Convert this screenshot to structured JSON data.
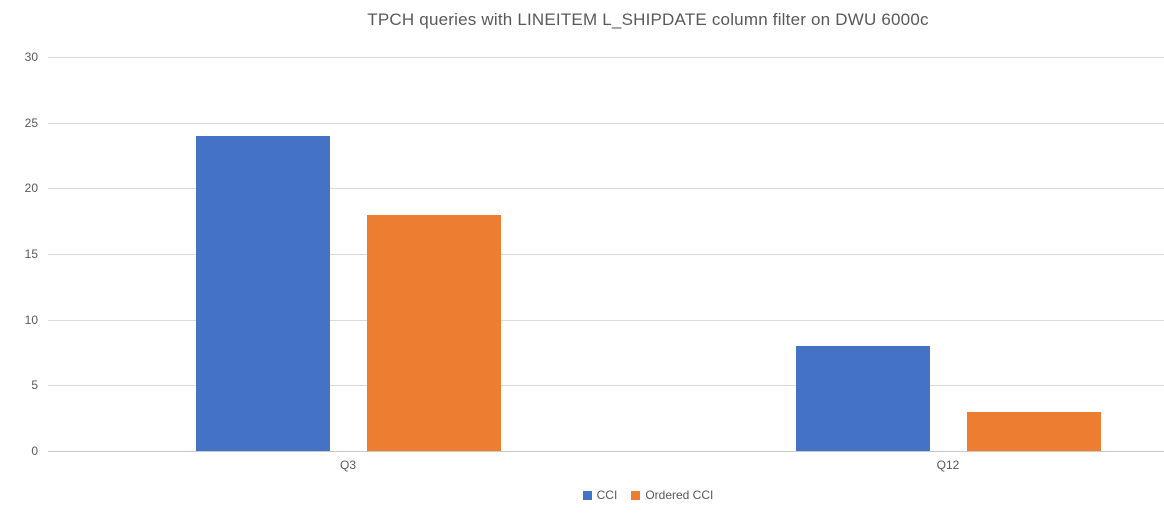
{
  "chart_data": {
    "type": "bar",
    "title": "TPCH queries with LINEITEM L_SHIPDATE column filter on DWU 6000c",
    "categories": [
      "Q3",
      "Q12"
    ],
    "series": [
      {
        "name": "CCI",
        "color": "#4472C4",
        "values": [
          24,
          8
        ]
      },
      {
        "name": "Ordered CCI",
        "color": "#ED7D31",
        "values": [
          18,
          3
        ]
      }
    ],
    "ylabel": "",
    "xlabel": "",
    "ylim": [
      0,
      30
    ],
    "yticks": [
      0,
      5,
      10,
      15,
      20,
      25,
      30
    ],
    "grid": true,
    "gridline_color": "#D9D9D9",
    "text_color": "#595959",
    "legend_position": "bottom"
  }
}
